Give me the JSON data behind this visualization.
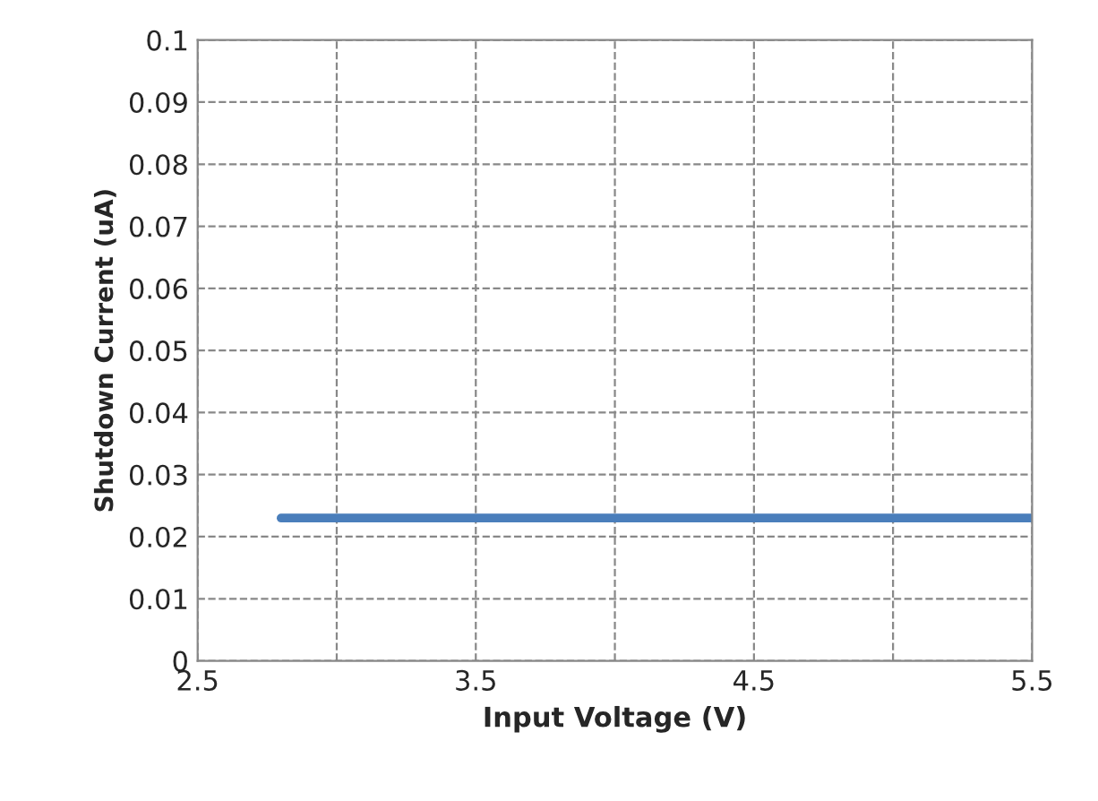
{
  "chart_data": {
    "type": "line",
    "xlabel": "Input Voltage (V)",
    "ylabel": "Shutdown Current (uA)",
    "series": [
      {
        "color": "#4a7ebb",
        "x": [
          2.8,
          5.5
        ],
        "values": [
          0.023,
          0.023
        ]
      }
    ],
    "xlim": [
      2.5,
      5.5
    ],
    "xticks": [
      {
        "value": 2.5,
        "label": "2.5"
      },
      {
        "value": 3,
        "label": null
      },
      {
        "value": 3.5,
        "label": "3.5"
      },
      {
        "value": 4,
        "label": null
      },
      {
        "value": 4.5,
        "label": "4.5"
      },
      {
        "value": 5,
        "label": null
      },
      {
        "value": 5.5,
        "label": "5.5"
      }
    ],
    "ylim": [
      0,
      0.1
    ],
    "yticks": [
      0,
      0.01,
      0.02,
      0.03,
      0.04,
      0.05,
      0.06,
      0.07,
      0.08,
      0.09,
      0.1
    ],
    "grid": true,
    "line_style": "solid",
    "marker": "none"
  }
}
